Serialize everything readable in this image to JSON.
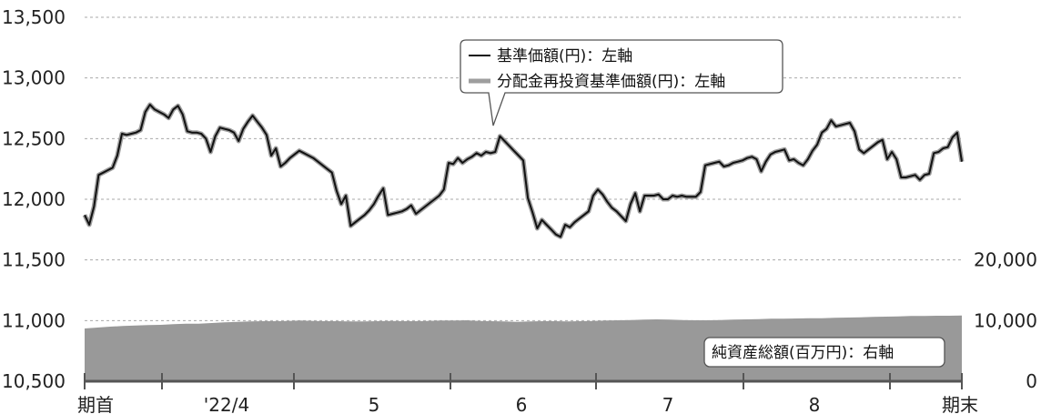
{
  "chart_data": {
    "type": "line",
    "x_ticks": [
      "期首",
      "'22/4",
      "5",
      "6",
      "7",
      "8",
      "期末"
    ],
    "left_axis": {
      "ylim": [
        10500,
        13500
      ],
      "ticks": [
        10500,
        11000,
        11500,
        12000,
        12500,
        13000,
        13500
      ],
      "tick_labels": [
        "10,500",
        "11,000",
        "11,500",
        "12,000",
        "12,500",
        "13,000",
        "13,500"
      ]
    },
    "right_axis": {
      "ticks": [
        0,
        10000,
        20000
      ],
      "tick_labels": [
        "0",
        "10,000",
        "20,000"
      ]
    },
    "grid": "horizontal-dashed",
    "series": [
      {
        "name": "基準価額(円)：左軸",
        "color": "#111111",
        "values": [
          11870,
          11790,
          11940,
          12200,
          12220,
          12240,
          12260,
          12360,
          12540,
          12530,
          12540,
          12550,
          12570,
          12720,
          12780,
          12740,
          12720,
          12700,
          12670,
          12740,
          12770,
          12700,
          12560,
          12550,
          12550,
          12540,
          12500,
          12390,
          12520,
          12590,
          12580,
          12570,
          12550,
          12480,
          12580,
          12640,
          12690,
          12640,
          12590,
          12530,
          12360,
          12420,
          12270,
          12300,
          12340,
          12370,
          12400,
          12380,
          12360,
          12340,
          12310,
          12280,
          12250,
          12220,
          12070,
          11960,
          12030,
          11780,
          11810,
          11840,
          11870,
          11910,
          11960,
          12030,
          12090,
          11870,
          11880,
          11890,
          11900,
          11920,
          11950,
          11880,
          11910,
          11940,
          11970,
          12000,
          12030,
          12080,
          12300,
          12290,
          12340,
          12300,
          12330,
          12350,
          12380,
          12360,
          12390,
          12380,
          12390,
          12520,
          12480,
          12440,
          12400,
          12360,
          12320,
          12010,
          11890,
          11760,
          11830,
          11790,
          11750,
          11710,
          11690,
          11790,
          11770,
          11810,
          11840,
          11870,
          11900,
          12030,
          12080,
          12040,
          11980,
          11930,
          11900,
          11860,
          11820,
          11960,
          12050,
          11900,
          12030,
          12030,
          12030,
          12040,
          12000,
          12000,
          12030,
          12020,
          12030,
          12020,
          12020,
          12020,
          12060,
          12280,
          12290,
          12300,
          12310,
          12270,
          12280,
          12300,
          12310,
          12320,
          12340,
          12350,
          12330,
          12230,
          12310,
          12370,
          12390,
          12400,
          12410,
          12320,
          12330,
          12300,
          12280,
          12330,
          12400,
          12450,
          12550,
          12580,
          12650,
          12600,
          12610,
          12620,
          12630,
          12560,
          12410,
          12380,
          12410,
          12440,
          12470,
          12490,
          12330,
          12390,
          12330,
          12180,
          12180,
          12190,
          12200,
          12160,
          12200,
          12210,
          12380,
          12390,
          12420,
          12430,
          12510,
          12550,
          12310
        ]
      },
      {
        "name": "分配金再投資基準価額(円)：左軸",
        "color": "#9e9e9e",
        "values": [
          11870,
          11790,
          11940,
          12200,
          12220,
          12240,
          12260,
          12360,
          12540,
          12530,
          12540,
          12550,
          12570,
          12720,
          12780,
          12740,
          12720,
          12700,
          12670,
          12740,
          12770,
          12700,
          12560,
          12550,
          12550,
          12540,
          12500,
          12390,
          12520,
          12590,
          12580,
          12570,
          12550,
          12480,
          12580,
          12640,
          12690,
          12640,
          12590,
          12530,
          12360,
          12420,
          12270,
          12300,
          12340,
          12370,
          12400,
          12380,
          12360,
          12340,
          12310,
          12280,
          12250,
          12220,
          12070,
          11960,
          12030,
          11780,
          11810,
          11840,
          11870,
          11910,
          11960,
          12030,
          12090,
          11870,
          11880,
          11890,
          11900,
          11920,
          11950,
          11880,
          11910,
          11940,
          11970,
          12000,
          12030,
          12080,
          12300,
          12290,
          12340,
          12300,
          12330,
          12350,
          12380,
          12360,
          12390,
          12380,
          12390,
          12520,
          12480,
          12440,
          12400,
          12360,
          12320,
          12010,
          11890,
          11760,
          11830,
          11790,
          11750,
          11710,
          11690,
          11790,
          11770,
          11810,
          11840,
          11870,
          11900,
          12030,
          12080,
          12040,
          11980,
          11930,
          11900,
          11860,
          11820,
          11960,
          12050,
          11900,
          12030,
          12030,
          12030,
          12040,
          12000,
          12000,
          12030,
          12020,
          12030,
          12020,
          12020,
          12020,
          12060,
          12280,
          12290,
          12300,
          12310,
          12270,
          12280,
          12300,
          12310,
          12320,
          12340,
          12350,
          12330,
          12230,
          12310,
          12370,
          12390,
          12400,
          12410,
          12320,
          12330,
          12300,
          12280,
          12330,
          12400,
          12450,
          12550,
          12580,
          12650,
          12600,
          12610,
          12620,
          12630,
          12560,
          12410,
          12380,
          12410,
          12440,
          12470,
          12490,
          12330,
          12390,
          12330,
          12180,
          12180,
          12190,
          12200,
          12160,
          12200,
          12210,
          12380,
          12390,
          12420,
          12430,
          12510,
          12550,
          12310
        ]
      },
      {
        "name": "純資産総額(百万円)：右軸",
        "type": "area",
        "color": "#999999",
        "values": [
          8700,
          8850,
          9000,
          9100,
          9200,
          9250,
          9300,
          9400,
          9500,
          9500,
          9600,
          9700,
          9800,
          9850,
          9900,
          9900,
          9950,
          10000,
          9950,
          9900,
          9900,
          9850,
          9850,
          9900,
          9950,
          9900,
          9900,
          9950,
          10000,
          10000,
          10050,
          9950,
          9900,
          9850,
          9800,
          9850,
          9900,
          9900,
          9850,
          9900,
          9950,
          10000,
          10050,
          10100,
          10150,
          10200,
          10150,
          10100,
          10050,
          10050,
          10100,
          10150,
          10200,
          10250,
          10300,
          10300,
          10350,
          10400,
          10400,
          10450,
          10500,
          10550,
          10600,
          10650,
          10700,
          10750,
          10750,
          10800,
          10800,
          10850
        ]
      }
    ],
    "legend_placement": "top-center",
    "annotation": "純資産総額(百万円)：右軸"
  }
}
